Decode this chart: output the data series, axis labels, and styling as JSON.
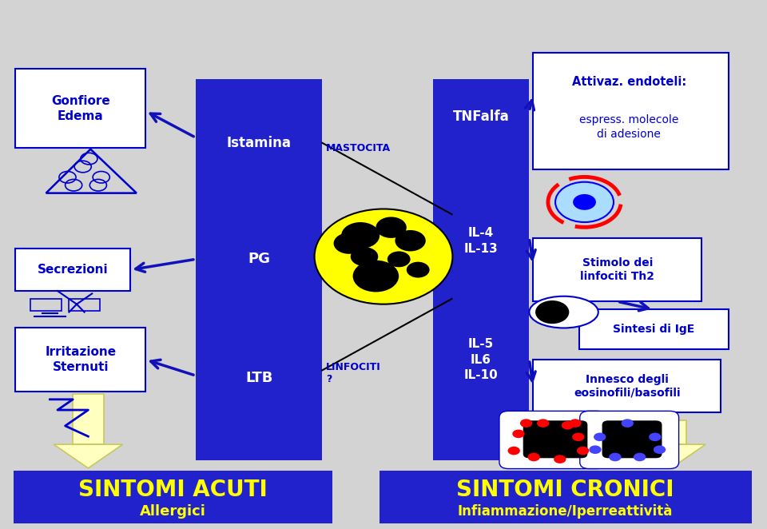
{
  "bg_color": "#d3d3d3",
  "blue_rect_color": "#2222cc",
  "title_blue": "#0000cc",
  "arrow_color": "#1111bb",
  "yellow_color": "#ffff00",
  "label_istamina": "Istamina",
  "label_pg": "PG",
  "label_ltb": "LTB",
  "label_mastocita": "MASTOCITA",
  "label_linfociti": "LINFOCITI\n?",
  "label_tnfalfa": "TNFalfa",
  "label_il4_il13": "IL-4\nIL-13",
  "label_il5_il6_il10": "IL-5\nIL6\nIL-10",
  "label_gonfiore": "Gonfiore\nEdema",
  "label_secrezioni": "Secrezioni",
  "label_irritazione": "Irritazione\nSternuti",
  "label_attivaz_line1": "Attivaz. endoteli:",
  "label_attivaz_line2": "espress. molecole\ndi adesione",
  "label_stimolo": "Stimolo dei\nlinfociti Th2",
  "label_sintesi": "Sintesi di IgE",
  "label_innesco": "Innesco degli\neosinofili/basofili",
  "label_sintomi_acuti": "SINTOMI ACUTI",
  "label_allergici": "Allergici",
  "label_sintomi_cronici": "SINTOMI CRONICI",
  "label_infiammazione": "Infiammazione/Iperreattività"
}
